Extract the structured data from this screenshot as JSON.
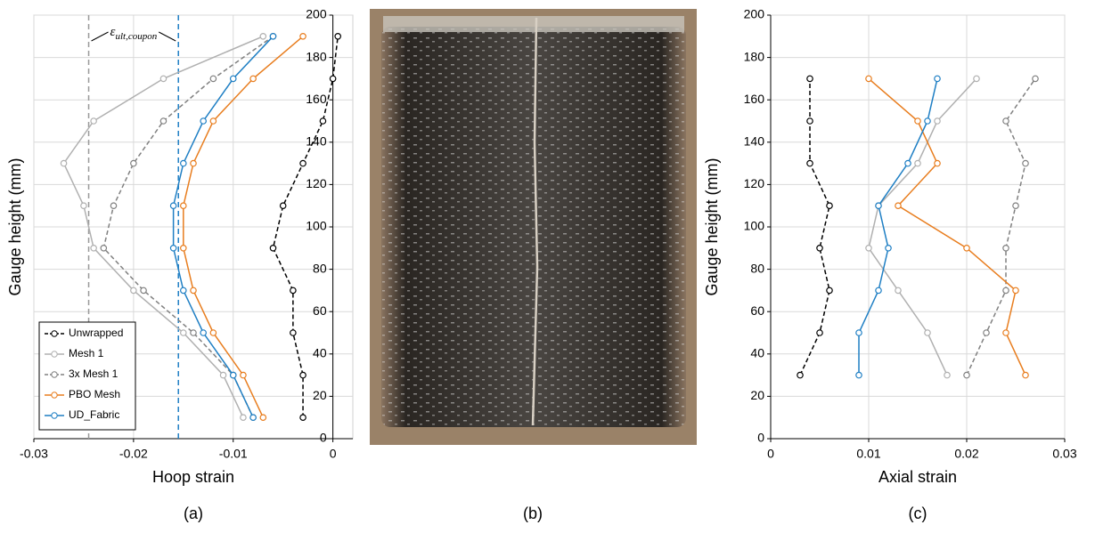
{
  "chart_data": [
    {
      "type": "line",
      "panel_label": "(a)",
      "x_label": "Hoop strain",
      "y_label": "Gauge height (mm)",
      "annotation": {
        "symbol": "ε",
        "subscript": "ult,coupon"
      },
      "xlim": [
        -0.03,
        0.002
      ],
      "xticks": [
        -0.03,
        -0.02,
        -0.01,
        0
      ],
      "ylim": [
        0,
        200
      ],
      "yticks": [
        0,
        20,
        40,
        60,
        80,
        100,
        120,
        140,
        160,
        180,
        200
      ],
      "grid": true,
      "legend": "bottom left",
      "vlines": [
        {
          "value": -0.0245,
          "color": "#999999"
        },
        {
          "value": -0.0155,
          "color": "#1f7fc4"
        }
      ],
      "y": [
        10,
        30,
        50,
        70,
        90,
        110,
        130,
        150,
        170,
        190
      ],
      "series": [
        {
          "name": "Unwrapped",
          "color": "#000000",
          "dash": true,
          "values": [
            -0.003,
            -0.003,
            -0.004,
            -0.004,
            -0.006,
            -0.005,
            -0.003,
            -0.001,
            0,
            0.0005
          ]
        },
        {
          "name": "Mesh 1",
          "color": "#b0b0b0",
          "dash": false,
          "values": [
            -0.009,
            -0.011,
            -0.015,
            -0.02,
            -0.024,
            -0.025,
            -0.027,
            -0.024,
            -0.017,
            -0.007
          ]
        },
        {
          "name": "3x Mesh 1",
          "color": "#808080",
          "dash": true,
          "values": [
            -0.008,
            -0.01,
            -0.014,
            -0.019,
            -0.023,
            -0.022,
            -0.02,
            -0.017,
            -0.012,
            -0.006
          ]
        },
        {
          "name": "PBO Mesh",
          "color": "#e87d1e",
          "dash": false,
          "values": [
            -0.007,
            -0.009,
            -0.012,
            -0.014,
            -0.015,
            -0.015,
            -0.014,
            -0.012,
            -0.008,
            -0.003
          ]
        },
        {
          "name": "UD_Fabric",
          "color": "#1f7fc4",
          "dash": false,
          "values": [
            -0.008,
            -0.01,
            -0.013,
            -0.015,
            -0.016,
            -0.016,
            -0.015,
            -0.013,
            -0.01,
            -0.006
          ]
        }
      ]
    },
    {
      "type": "line",
      "panel_label": "(c)",
      "x_label": "Axial strain",
      "y_label": "Gauge height (mm)",
      "xlim": [
        0,
        0.03
      ],
      "xticks": [
        0,
        0.01,
        0.02,
        0.03
      ],
      "ylim": [
        0,
        200
      ],
      "yticks": [
        0,
        20,
        40,
        60,
        80,
        100,
        120,
        140,
        160,
        180,
        200
      ],
      "grid": true,
      "legend": false,
      "y": [
        30,
        50,
        70,
        90,
        110,
        130,
        150,
        170
      ],
      "series": [
        {
          "color": "#000000",
          "dash": true,
          "values": [
            0.003,
            0.005,
            0.006,
            0.005,
            0.006,
            0.004,
            0.004,
            0.004
          ]
        },
        {
          "color": "#b0b0b0",
          "dash": false,
          "values": [
            0.018,
            0.016,
            0.013,
            0.01,
            0.011,
            0.015,
            0.017,
            0.021
          ]
        },
        {
          "color": "#808080",
          "dash": true,
          "values": [
            0.02,
            0.022,
            0.024,
            0.024,
            0.025,
            0.026,
            0.024,
            0.027
          ]
        },
        {
          "color": "#e87d1e",
          "dash": false,
          "values": [
            0.026,
            0.024,
            0.025,
            0.02,
            0.013,
            0.017,
            0.015,
            0.01
          ]
        },
        {
          "color": "#1f7fc4",
          "dash": false,
          "values": [
            0.009,
            0.009,
            0.011,
            0.012,
            0.011,
            0.014,
            0.016,
            0.017
          ]
        }
      ]
    }
  ],
  "photo_label": "(b)"
}
